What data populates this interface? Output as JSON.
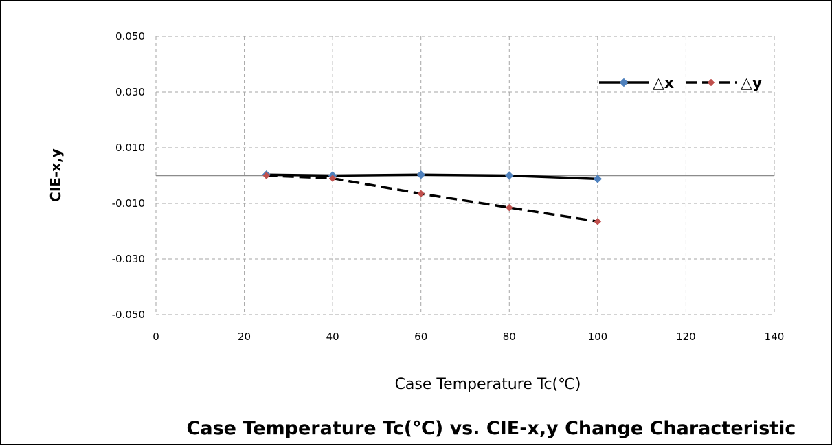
{
  "chart_data": {
    "type": "line",
    "title": "Case Temperature Tc(℃) vs. CIE-x,y Change Characteristic",
    "xlabel": "Case Temperature Tc(℃)",
    "ylabel": "CIE-x,y",
    "xlim": [
      0,
      140
    ],
    "ylim": [
      -0.05,
      0.05
    ],
    "xticks": [
      "0",
      "20",
      "40",
      "60",
      "80",
      "100",
      "120",
      "140"
    ],
    "yticks": [
      "0.050",
      "0.030",
      "0.010",
      "-0.010",
      "-0.030",
      "-0.050"
    ],
    "grid": true,
    "legend_position": "top-right",
    "series": [
      {
        "name": "△x",
        "line_style": "solid",
        "color": "#000000",
        "marker_color": "#4F81BD",
        "x": [
          25,
          40,
          60,
          80,
          100
        ],
        "y": [
          0.0003,
          0.0,
          0.0003,
          0.0,
          -0.0012
        ]
      },
      {
        "name": "△y",
        "line_style": "dashed",
        "color": "#000000",
        "marker_color": "#C0504D",
        "x": [
          25,
          40,
          60,
          80,
          100
        ],
        "y": [
          0.0,
          -0.001,
          -0.0065,
          -0.0115,
          -0.0165
        ]
      }
    ]
  }
}
